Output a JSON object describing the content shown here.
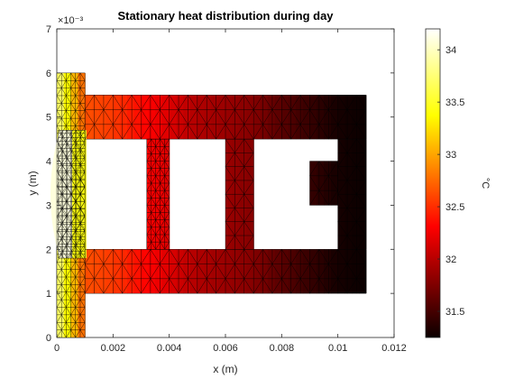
{
  "chart_data": {
    "type": "heatmap",
    "title": "Stationary heat distribution during day",
    "xlabel": "x (m)",
    "ylabel": "y (m)",
    "xlim": [
      0,
      0.012
    ],
    "ylim": [
      0,
      0.007
    ],
    "x_ticks": [
      0,
      0.002,
      0.004,
      0.006,
      0.008,
      0.01,
      0.012
    ],
    "x_tick_labels": [
      "0",
      "0.002",
      "0.004",
      "0.006",
      "0.008",
      "0.01",
      "0.012"
    ],
    "y_ticks": [
      0,
      0.001,
      0.002,
      0.003,
      0.004,
      0.005,
      0.006,
      0.007
    ],
    "y_tick_labels": [
      "0",
      "1",
      "2",
      "3",
      "4",
      "5",
      "6",
      "7"
    ],
    "y_exponent_label": "×10⁻³",
    "colorbar": {
      "label": "°C",
      "colormap": "hot",
      "range": [
        31.25,
        34.2
      ],
      "ticks": [
        31.5,
        32,
        32.5,
        33,
        33.5,
        34
      ],
      "tick_labels": [
        "31.5",
        "32",
        "32.5",
        "33",
        "33.5",
        "34"
      ]
    },
    "temperature_samples_x": [
      0,
      0.001,
      0.002,
      0.003,
      0.004,
      0.005,
      0.006,
      0.007,
      0.008,
      0.009,
      0.01,
      0.011
    ],
    "temperature_samples_C": [
      33.9,
      32.7,
      32.6,
      32.4,
      32.2,
      32.0,
      31.9,
      31.8,
      31.6,
      31.45,
      31.3,
      31.25
    ],
    "core_temperature_C": 34.1
  }
}
